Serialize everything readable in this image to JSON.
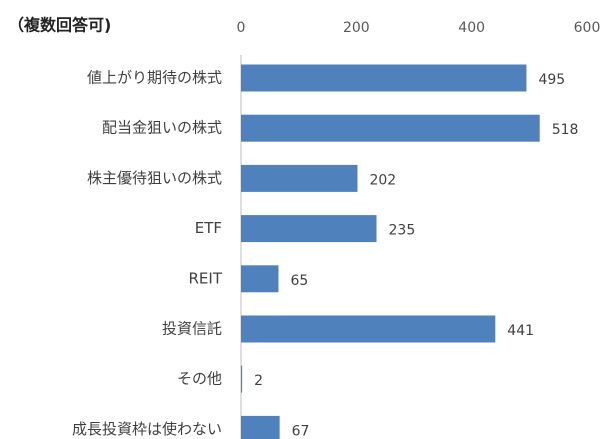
{
  "chart_data": {
    "type": "bar",
    "orientation": "horizontal",
    "title": "（複数回答可)",
    "categories": [
      "値上がり期待の株式",
      "配当金狙いの株式",
      "株主優待狙いの株式",
      "ETF",
      "REIT",
      "投資信託",
      "その他",
      "成長投資枠は使わない"
    ],
    "values": [
      495,
      518,
      202,
      235,
      65,
      441,
      2,
      67
    ],
    "color": "#4f81bd",
    "xlim": [
      0,
      600
    ],
    "xticks": [
      0,
      200,
      400,
      600
    ],
    "grid": false
  }
}
